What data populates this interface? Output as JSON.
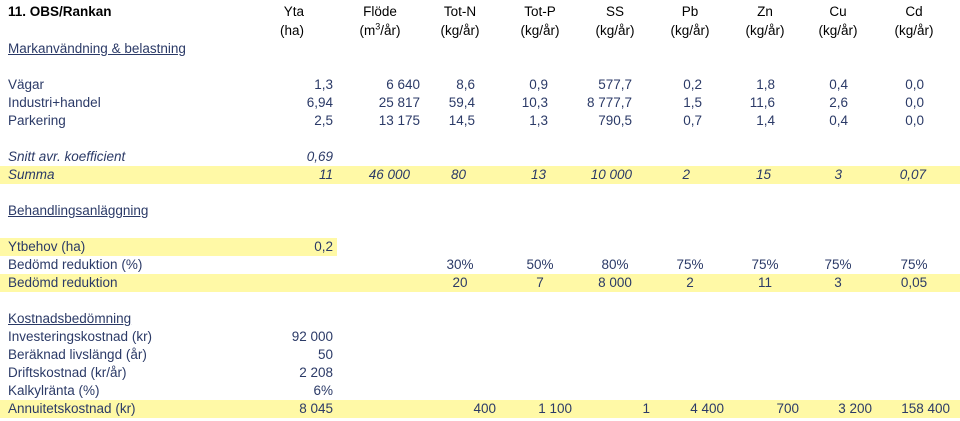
{
  "title": "11. OBS/Rankan",
  "headers": {
    "yta": "Yta",
    "flode": "Flöde",
    "totn": "Tot-N",
    "totp": "Tot-P",
    "ss": "SS",
    "pb": "Pb",
    "zn": "Zn",
    "cu": "Cu",
    "cd": "Cd"
  },
  "units": {
    "yta": "(ha)",
    "flode_pre": "(m",
    "flode_sup": "3",
    "flode_post": "/år)",
    "totn": "(kg/år)",
    "totp": "(kg/år)",
    "ss": "(kg/år)",
    "pb": "(kg/år)",
    "zn": "(kg/år)",
    "cu": "(kg/år)",
    "cd": "(kg/år)"
  },
  "section1": "Markanvändning & belastning",
  "landuse": [
    {
      "name": "Vägar",
      "yta": "1,3",
      "flode": "6 640",
      "totn": "8,6",
      "totp": "0,9",
      "ss": "577,7",
      "pb": "0,2",
      "zn": "1,8",
      "cu": "0,4",
      "cd": "0,0"
    },
    {
      "name": "Industri+handel",
      "yta": "6,94",
      "flode": "25 817",
      "totn": "59,4",
      "totp": "10,3",
      "ss": "8 777,7",
      "pb": "1,5",
      "zn": "11,6",
      "cu": "2,6",
      "cd": "0,0"
    },
    {
      "name": "Parkering",
      "yta": "2,5",
      "flode": "13 175",
      "totn": "14,5",
      "totp": "1,3",
      "ss": "790,5",
      "pb": "0,7",
      "zn": "1,4",
      "cu": "0,4",
      "cd": "0,0"
    }
  ],
  "snitt": {
    "label": "Snitt avr. koefficient",
    "value": "0,69"
  },
  "summa": {
    "label": "Summa",
    "yta": "11",
    "flode": "46 000",
    "totn": "80",
    "totp": "13",
    "ss": "10 000",
    "pb": "2",
    "zn": "15",
    "cu": "3",
    "cd": "0,07"
  },
  "section2": "Behandlingsanläggning",
  "ytbehov": {
    "label": "Ytbehov (ha)",
    "value": "0,2"
  },
  "reduktion_pct": {
    "label": "Bedömd reduktion (%)",
    "totn": "30%",
    "totp": "50%",
    "ss": "80%",
    "pb": "75%",
    "zn": "75%",
    "cu": "75%",
    "cd": "75%"
  },
  "reduktion": {
    "label": "Bedömd reduktion",
    "totn": "20",
    "totp": "7",
    "ss": "8 000",
    "pb": "2",
    "zn": "11",
    "cu": "3",
    "cd": "0,05"
  },
  "section3": "Kostnadsbedömning",
  "costs": [
    {
      "label": "Investeringskostnad (kr)",
      "value": "92 000"
    },
    {
      "label": "Beräknad livslängd (år)",
      "value": "50"
    },
    {
      "label": "Driftskostnad (kr/år)",
      "value": "2 208"
    },
    {
      "label": "Kalkylränta (%)",
      "value": "6%"
    }
  ],
  "annuitet": {
    "label": "Annuitetskostnad (kr)",
    "yta": "8 045",
    "totn": "400",
    "totp": "1 100",
    "ss": "1",
    "pb": "4 400",
    "zn": "700",
    "cu": "3 200",
    "cd": "158 400"
  }
}
